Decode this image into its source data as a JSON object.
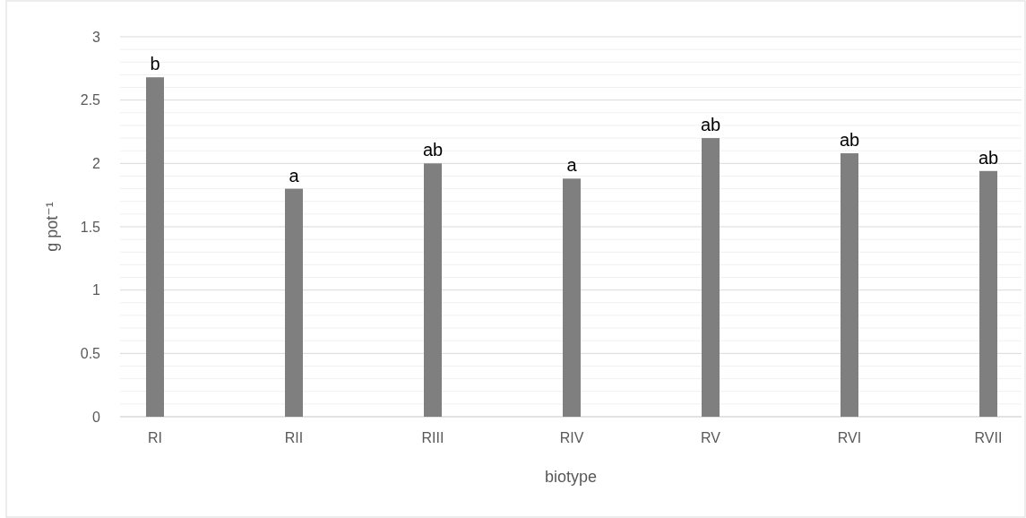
{
  "chart_data": {
    "type": "bar",
    "xlabel": "biotype",
    "ylabel": "g pot⁻¹",
    "categories": [
      "RI",
      "RII",
      "RIII",
      "RIV",
      "RV",
      "RVI",
      "RVII"
    ],
    "values": [
      2.68,
      1.8,
      2.0,
      1.88,
      2.2,
      2.08,
      1.94
    ],
    "color": "#7f7f7f",
    "ylim": [
      0,
      3
    ],
    "yticks": [
      0,
      {
        "value": 0.1,
        "label": null
      },
      {
        "value": 0.2,
        "label": null
      },
      {
        "value": 0.3,
        "label": null
      },
      {
        "value": 0.4,
        "label": null
      },
      0.5,
      {
        "value": 0.6,
        "label": null
      },
      {
        "value": 0.7,
        "label": null
      },
      {
        "value": 0.8,
        "label": null
      },
      {
        "value": 0.9,
        "label": null
      },
      1,
      {
        "value": 1.1,
        "label": null
      },
      {
        "value": 1.2,
        "label": null
      },
      {
        "value": 1.3,
        "label": null
      },
      {
        "value": 1.4,
        "label": null
      },
      1.5,
      {
        "value": 1.6,
        "label": null
      },
      {
        "value": 1.7,
        "label": null
      },
      {
        "value": 1.8,
        "label": null
      },
      {
        "value": 1.9,
        "label": null
      },
      2,
      {
        "value": 2.1,
        "label": null
      },
      {
        "value": 2.2,
        "label": null
      },
      {
        "value": 2.3,
        "label": null
      },
      {
        "value": 2.4,
        "label": null
      },
      2.5,
      {
        "value": 2.6,
        "label": null
      },
      {
        "value": 2.7,
        "label": null
      },
      {
        "value": 2.8,
        "label": null
      },
      {
        "value": 2.9,
        "label": null
      },
      3
    ],
    "grid": "y",
    "annotations": [
      {
        "text": "b",
        "x": "RI",
        "y": 2.68
      },
      {
        "text": "a",
        "x": "RII",
        "y": 1.8
      },
      {
        "text": "ab",
        "x": "RIII",
        "y": 2.0
      },
      {
        "text": "a",
        "x": "RIV",
        "y": 1.88
      },
      {
        "text": "ab",
        "x": "RV",
        "y": 2.2
      },
      {
        "text": "ab",
        "x": "RVI",
        "y": 2.08
      },
      {
        "text": "ab",
        "x": "RVII",
        "y": 1.94
      }
    ]
  }
}
